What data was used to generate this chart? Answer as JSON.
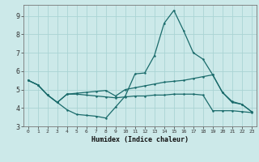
{
  "xlabel": "Humidex (Indice chaleur)",
  "xlim": [
    -0.5,
    23.5
  ],
  "ylim": [
    3.0,
    9.6
  ],
  "yticks": [
    3,
    4,
    5,
    6,
    7,
    8,
    9
  ],
  "xticks": [
    0,
    1,
    2,
    3,
    4,
    5,
    6,
    7,
    8,
    9,
    10,
    11,
    12,
    13,
    14,
    15,
    16,
    17,
    18,
    19,
    20,
    21,
    22,
    23
  ],
  "bg_color": "#cce9e9",
  "grid_color": "#aad4d4",
  "line_color": "#1a6b6b",
  "lines": [
    {
      "x": [
        0,
        1,
        2,
        3,
        4,
        5,
        6,
        7,
        8,
        9,
        10,
        11,
        12,
        13,
        14,
        15,
        16,
        17,
        18,
        19,
        20,
        21,
        22,
        23
      ],
      "y": [
        5.5,
        5.25,
        4.7,
        4.3,
        3.9,
        3.65,
        3.6,
        3.55,
        3.45,
        4.05,
        4.65,
        5.85,
        5.9,
        6.85,
        8.6,
        9.3,
        8.2,
        7.0,
        6.65,
        5.8,
        4.85,
        4.3,
        4.2,
        3.8
      ]
    },
    {
      "x": [
        0,
        1,
        2,
        3,
        4,
        5,
        6,
        7,
        8,
        9,
        10,
        11,
        12,
        13,
        14,
        15,
        16,
        17,
        18,
        19,
        20,
        21,
        22,
        23
      ],
      "y": [
        5.5,
        5.25,
        4.7,
        4.3,
        4.75,
        4.8,
        4.85,
        4.9,
        4.95,
        4.65,
        5.0,
        5.1,
        5.2,
        5.3,
        5.4,
        5.45,
        5.5,
        5.6,
        5.7,
        5.8,
        4.85,
        4.35,
        4.2,
        3.8
      ]
    },
    {
      "x": [
        0,
        1,
        2,
        3,
        4,
        5,
        6,
        7,
        8,
        9,
        10,
        11,
        12,
        13,
        14,
        15,
        16,
        17,
        18,
        19,
        20,
        21,
        22,
        23
      ],
      "y": [
        5.5,
        5.25,
        4.7,
        4.3,
        4.75,
        4.75,
        4.7,
        4.65,
        4.6,
        4.55,
        4.6,
        4.65,
        4.65,
        4.7,
        4.7,
        4.75,
        4.75,
        4.75,
        4.7,
        3.85,
        3.85,
        3.85,
        3.8,
        3.75
      ]
    }
  ]
}
